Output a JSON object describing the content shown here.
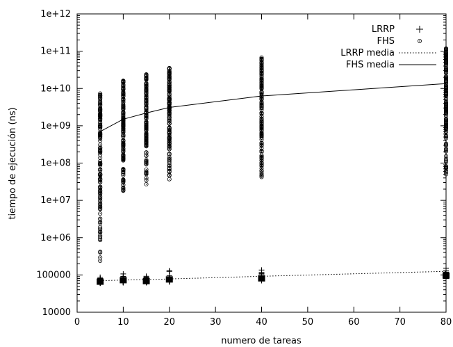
{
  "chart_data": {
    "type": "scatter",
    "xlabel": "numero de tareas",
    "ylabel": "tiempo de ejecución (ns)",
    "xlim": [
      0,
      80
    ],
    "ylim": [
      10000,
      1000000000000
    ],
    "y_scale": "log",
    "x_ticks": [
      0,
      10,
      20,
      30,
      40,
      50,
      60,
      70,
      80
    ],
    "y_ticks": [
      10000,
      100000,
      1000000,
      10000000,
      100000000,
      1000000000,
      10000000000,
      100000000000,
      1000000000000
    ],
    "y_tick_labels": [
      "10000",
      "100000",
      "1e+06",
      "1e+07",
      "1e+08",
      "1e+09",
      "1e+10",
      "1e+11",
      "1e+12"
    ],
    "grid": false,
    "legend_position": "top-right",
    "series": [
      {
        "name": "LRRP",
        "marker": "plus",
        "x": [
          5,
          10,
          15,
          20,
          40,
          80
        ],
        "range": [
          [
            60000,
            90000
          ],
          [
            62000,
            130000
          ],
          [
            62000,
            95000
          ],
          [
            65000,
            135000
          ],
          [
            70000,
            140000
          ],
          [
            80000,
            200000
          ]
        ]
      },
      {
        "name": "FHS",
        "marker": "circle-dot",
        "x": [
          5,
          10,
          15,
          20,
          40,
          80
        ],
        "range": [
          [
            230000,
            7500000000
          ],
          [
            18000000,
            17000000000
          ],
          [
            26000000,
            28000000000
          ],
          [
            35000000,
            36000000000
          ],
          [
            40000000,
            68000000000
          ],
          [
            50000000,
            120000000000
          ]
        ]
      },
      {
        "name": "LRRP media",
        "line_style": "dotted",
        "x": [
          5,
          10,
          15,
          20,
          40,
          80
        ],
        "values": [
          70000,
          73000,
          75000,
          78000,
          92000,
          125000
        ]
      },
      {
        "name": "FHS media",
        "line_style": "solid",
        "x": [
          5,
          10,
          15,
          20,
          40,
          80
        ],
        "values": [
          700000000,
          1500000000,
          2200000000,
          3100000000,
          6300000000,
          13500000000
        ]
      }
    ]
  }
}
